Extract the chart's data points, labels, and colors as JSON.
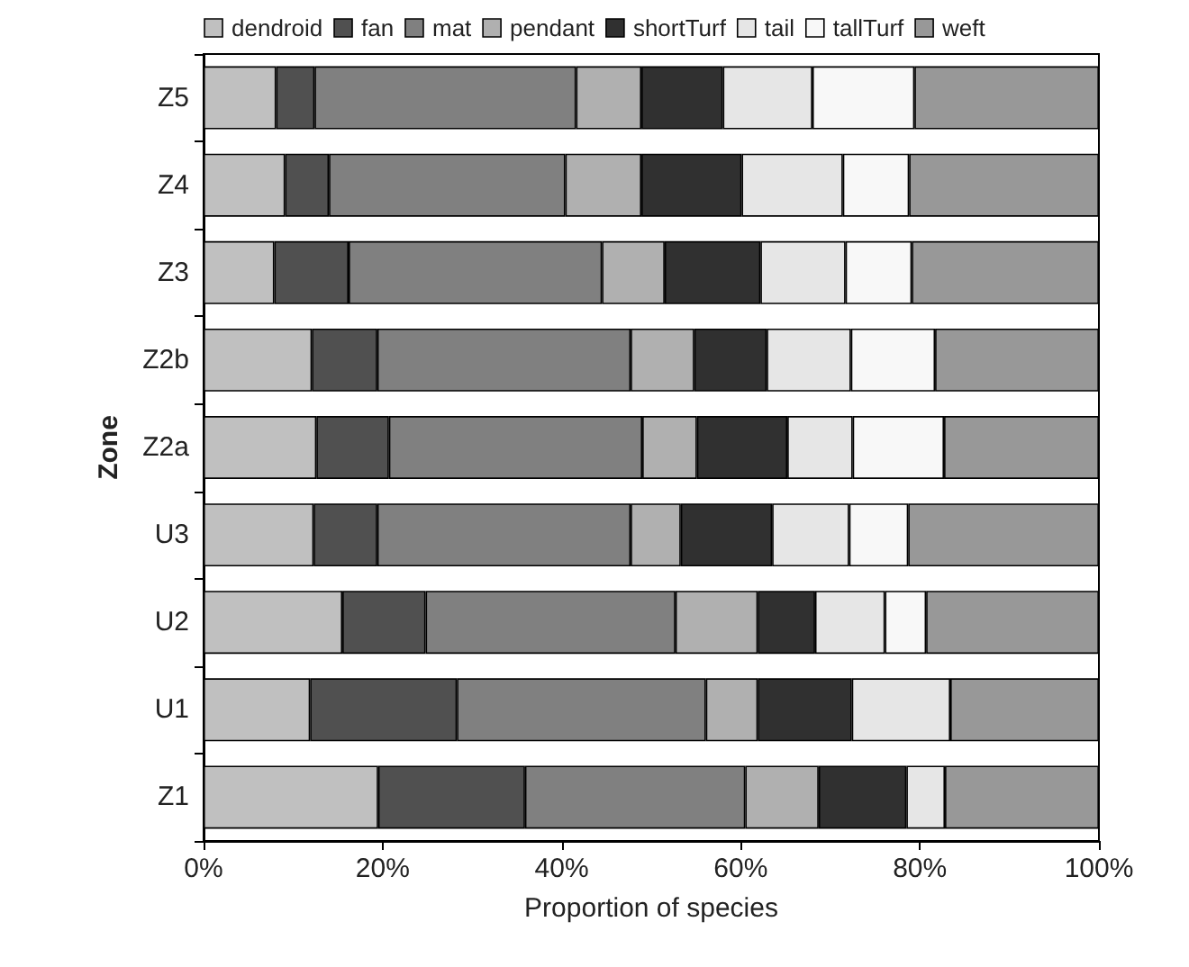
{
  "chart_data": {
    "type": "bar",
    "orientation": "horizontal",
    "stacked": true,
    "xlabel": "Proportion of species",
    "ylabel": "Zone",
    "categories": [
      "Z5",
      "Z4",
      "Z3",
      "Z2b",
      "Z2a",
      "U3",
      "U2",
      "U1",
      "Z1"
    ],
    "series": [
      {
        "name": "dendroid",
        "color": "#c0c0c0",
        "values": [
          8.1,
          9.1,
          7.9,
          12.1,
          12.6,
          12.3,
          15.5,
          11.9,
          19.5
        ]
      },
      {
        "name": "fan",
        "color": "#505050",
        "values": [
          4.3,
          4.9,
          8.3,
          7.3,
          8.1,
          7.1,
          9.3,
          16.4,
          16.4
        ]
      },
      {
        "name": "mat",
        "color": "#808080",
        "values": [
          29.2,
          26.4,
          28.3,
          28.3,
          28.3,
          28.3,
          27.9,
          27.8,
          24.6
        ]
      },
      {
        "name": "pendant",
        "color": "#b0b0b0",
        "values": [
          7.3,
          8.5,
          7.0,
          7.1,
          6.1,
          5.6,
          9.2,
          5.8,
          8.2
        ]
      },
      {
        "name": "shortTurf",
        "color": "#303030",
        "values": [
          9.1,
          11.2,
          10.7,
          8.1,
          10.1,
          10.2,
          6.4,
          10.5,
          9.8
        ]
      },
      {
        "name": "tail",
        "color": "#e6e6e6",
        "values": [
          10.0,
          11.3,
          9.5,
          9.4,
          7.3,
          8.6,
          7.8,
          11.0,
          4.3
        ]
      },
      {
        "name": "tallTurf",
        "color": "#f8f8f8",
        "values": [
          11.4,
          7.4,
          7.4,
          9.4,
          10.2,
          6.6,
          4.6,
          null,
          null
        ]
      },
      {
        "name": "weft",
        "color": "#989898",
        "values": [
          20.6,
          21.2,
          20.9,
          18.3,
          17.3,
          21.3,
          19.3,
          16.6,
          17.2
        ]
      }
    ],
    "xlim": [
      0,
      100
    ],
    "xticks": [
      {
        "value": 0,
        "label": "0%"
      },
      {
        "value": 20,
        "label": "20%"
      },
      {
        "value": 40,
        "label": "40%"
      },
      {
        "value": 60,
        "label": "60%"
      },
      {
        "value": 80,
        "label": "80%"
      },
      {
        "value": 100,
        "label": "100%"
      }
    ],
    "grid": false,
    "legend": "top"
  }
}
